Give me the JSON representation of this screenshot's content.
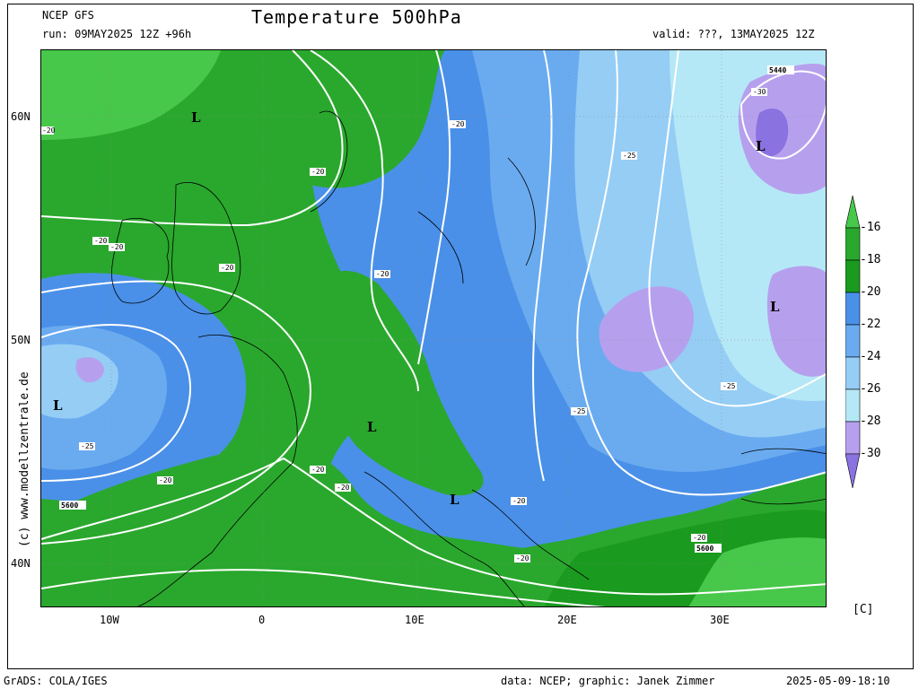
{
  "header": {
    "model": "NCEP GFS",
    "title": "Temperature 500hPa",
    "run": "run: 09MAY2025 12Z +96h",
    "valid": "valid: ???, 13MAY2025 12Z"
  },
  "footer": {
    "left": "GrADS: COLA/IGES",
    "mid": "data: NCEP; graphic: Janek Zimmer",
    "right": "2025-05-09-18:10"
  },
  "watermark": "(c)  www.modellzentrale.de",
  "axis": {
    "lat_labels": [
      "60N",
      "50N",
      "40N"
    ],
    "lon_labels": [
      "10W",
      "0",
      "10E",
      "20E",
      "30E"
    ]
  },
  "colorbar": {
    "unit": "[C]",
    "labels": [
      "-16",
      "-18",
      "-20",
      "-22",
      "-24",
      "-26",
      "-28",
      "-30"
    ],
    "colors": [
      "#47c84a",
      "#2aa82d",
      "#1a9a1f",
      "#4a90e8",
      "#6aabf0",
      "#95cdf5",
      "#b5e8f6",
      "#b6a0ee",
      "#8a72e0"
    ]
  },
  "map": {
    "contour_labels": [
      "-20",
      "-20",
      "-20",
      "-20",
      "-20",
      "-20",
      "-20",
      "-20",
      "-20",
      "-20",
      "-20",
      "-20",
      "-20",
      "-25",
      "-25",
      "-25",
      "-25",
      "-30"
    ],
    "height_labels": [
      "5440",
      "5600",
      "5600"
    ],
    "lows": [
      "L",
      "L",
      "L",
      "L",
      "L",
      "L"
    ]
  }
}
